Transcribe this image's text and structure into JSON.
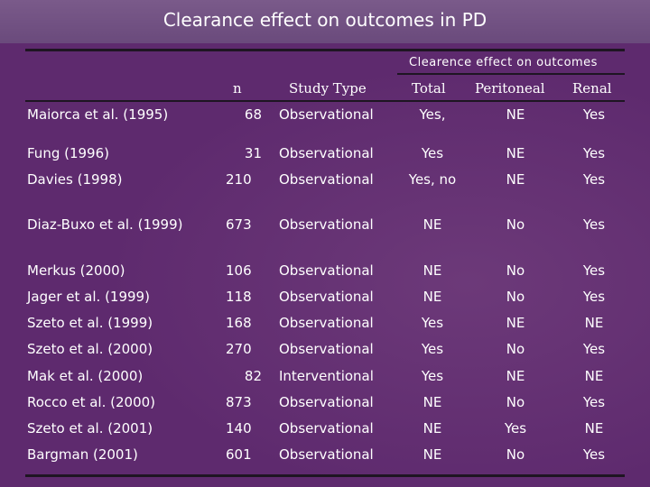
{
  "title": "Clearance effect on outcomes in PD",
  "group_header": "Clearence effect on outcomes",
  "columns": {
    "n": "n",
    "study_type": "Study Type",
    "total": "Total",
    "peritoneal": "Peritoneal",
    "renal": "Renal"
  },
  "rows": [
    {
      "study": "Maiorca et al. (1995)",
      "n": "68",
      "type": "Observational",
      "total": "Yes,",
      "peritoneal": "NE",
      "renal": "Yes"
    },
    {
      "study": "Fung  (1996)",
      "n": "31",
      "type": "Observational",
      "total": "Yes",
      "peritoneal": "NE",
      "renal": "Yes"
    },
    {
      "study": "Davies (1998)",
      "n": "210",
      "type": "Observational",
      "total": "Yes, no",
      "peritoneal": "NE",
      "renal": "Yes"
    },
    {
      "study": "Diaz-Buxo et al. (1999)",
      "n": "673",
      "type": "Observational",
      "total": "NE",
      "peritoneal": "No",
      "renal": "Yes"
    },
    {
      "study": "Merkus (2000)",
      "n": "106",
      "type": "Observational",
      "total": "NE",
      "peritoneal": "No",
      "renal": "Yes"
    },
    {
      "study": "Jager et al. (1999)",
      "n": "118",
      "type": "Observational",
      "total": "NE",
      "peritoneal": "No",
      "renal": "Yes"
    },
    {
      "study": "Szeto et al. (1999)",
      "n": "168",
      "type": "Observational",
      "total": "Yes",
      "peritoneal": "NE",
      "renal": "NE"
    },
    {
      "study": "Szeto et al. (2000)",
      "n": "270",
      "type": "Observational",
      "total": "Yes",
      "peritoneal": "No",
      "renal": "Yes"
    },
    {
      "study": "Mak et al. (2000)",
      "n": "82",
      "type": "Interventional",
      "total": "Yes",
      "peritoneal": "NE",
      "renal": "NE"
    },
    {
      "study": "Rocco et al. (2000)",
      "n": "873",
      "type": "Observational",
      "total": "NE",
      "peritoneal": "No",
      "renal": "Yes"
    },
    {
      "study": "Szeto et al. (2001)",
      "n": "140",
      "type": "Observational",
      "total": "NE",
      "peritoneal": "Yes",
      "renal": "NE"
    },
    {
      "study": "Bargman (2001)",
      "n": "601",
      "type": "Observational",
      "total": "NE",
      "peritoneal": "No",
      "renal": "Yes"
    }
  ]
}
